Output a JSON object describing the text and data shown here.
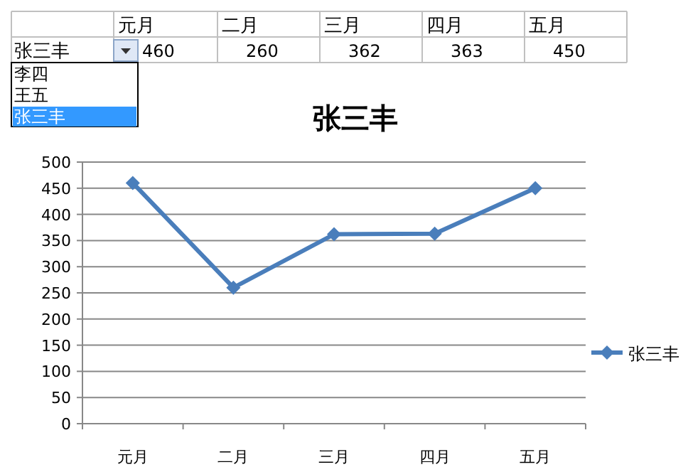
{
  "chart_data": [
    {
      "type": "other",
      "categories": [
        "元月",
        "二月",
        "三月",
        "四月",
        "五月"
      ],
      "series": [
        {
          "name": "张三丰",
          "values": [
            460,
            260,
            362,
            363,
            450
          ]
        }
      ],
      "data_labels": true,
      "annotations": [
        "李四",
        "王五",
        "张三丰"
      ]
    },
    {
      "type": "line",
      "title": "张三丰",
      "categories": [
        "元月",
        "二月",
        "三月",
        "四月",
        "五月"
      ],
      "series": [
        {
          "name": "张三丰",
          "color": "#4a7ebb",
          "values": [
            460,
            260,
            362,
            363,
            450
          ]
        }
      ],
      "ylim": [
        0,
        500
      ],
      "yticks": [
        0,
        50,
        100,
        150,
        200,
        250,
        300,
        350,
        400,
        450,
        500
      ],
      "grid": "y",
      "legend": "right",
      "marker": "diamond"
    }
  ]
}
